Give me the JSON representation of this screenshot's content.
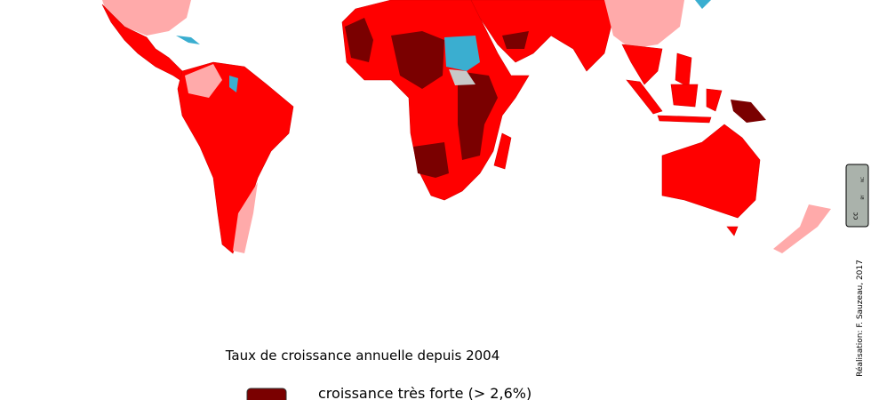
{
  "legend": {
    "title": "Taux de croissance annuelle depuis 2004",
    "items": [
      {
        "label": "croissance très forte (> 2,6%)",
        "color": "#7a0000"
      }
    ]
  },
  "credit": "Réalisation: F. Sauzeau, 2017",
  "license": {
    "icon": "cc",
    "by": "BY",
    "nc": "NC"
  }
}
